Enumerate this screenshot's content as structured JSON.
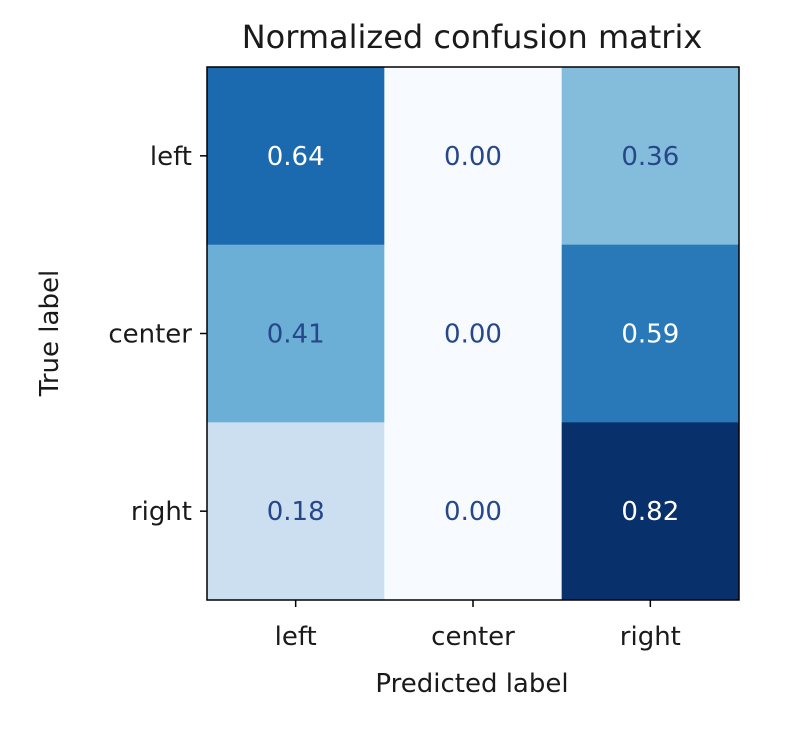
{
  "chart_data": {
    "type": "heatmap",
    "title": "Normalized confusion matrix",
    "xlabel": "Predicted label",
    "ylabel": "True label",
    "x_categories": [
      "left",
      "center",
      "right"
    ],
    "y_categories": [
      "left",
      "center",
      "right"
    ],
    "values": [
      [
        0.64,
        0.0,
        0.36
      ],
      [
        0.41,
        0.0,
        0.59
      ],
      [
        0.18,
        0.0,
        0.82
      ]
    ],
    "value_labels": [
      [
        "0.64",
        "0.00",
        "0.36"
      ],
      [
        "0.41",
        "0.00",
        "0.59"
      ],
      [
        "0.18",
        "0.00",
        "0.82"
      ]
    ],
    "colormap": "Blues",
    "vmin": 0.0,
    "vmax": 0.82,
    "light_text_color": "#ffffff",
    "dark_text_color": "#26478a"
  }
}
